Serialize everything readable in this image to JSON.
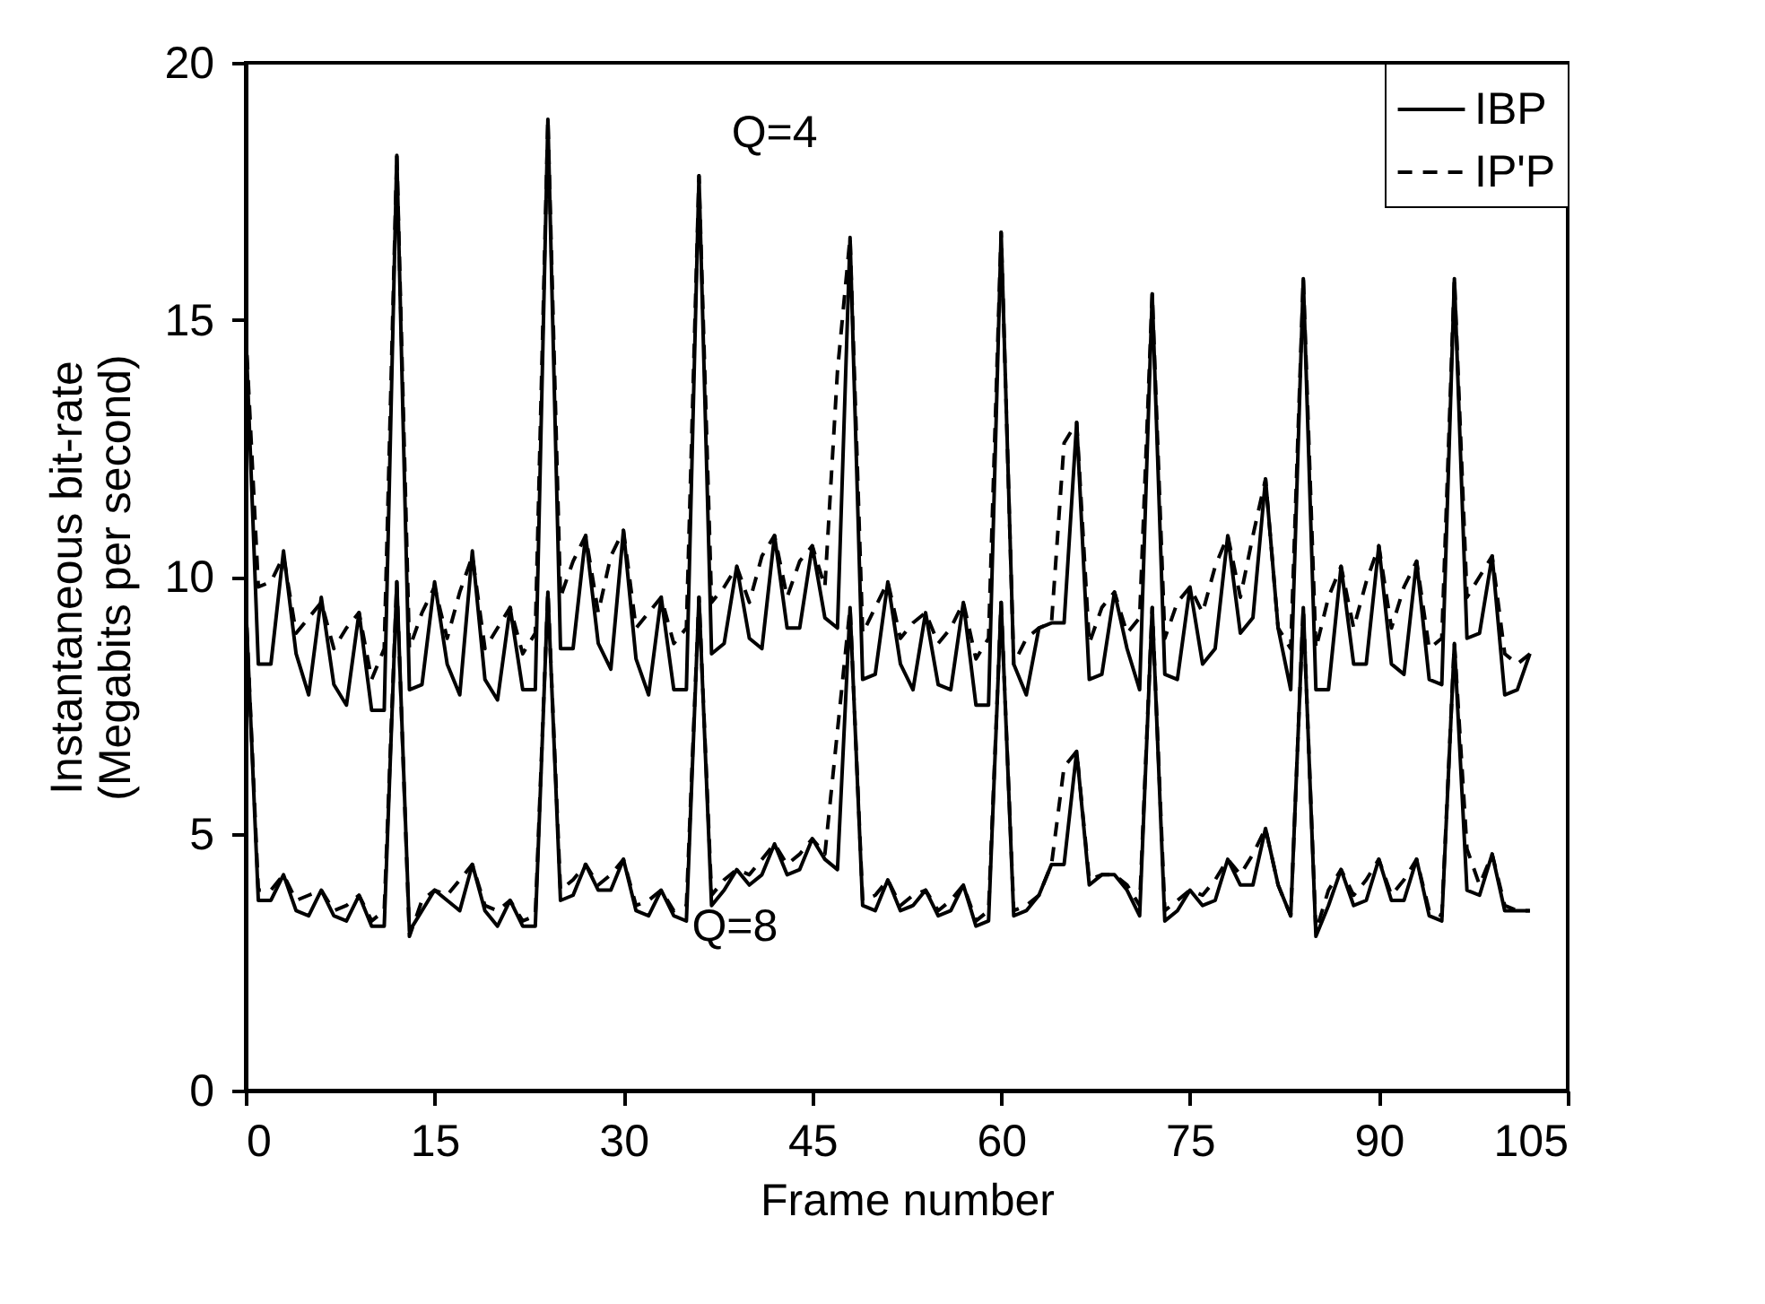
{
  "chart_data": {
    "type": "line",
    "xlabel": "Frame number",
    "ylabel": "Instantaneous bit-rate (Megabits per second)",
    "x": [
      0,
      1,
      2,
      3,
      4,
      5,
      6,
      7,
      8,
      9,
      10,
      11,
      12,
      13,
      14,
      15,
      16,
      17,
      18,
      19,
      20,
      21,
      22,
      23,
      24,
      25,
      26,
      27,
      28,
      29,
      30,
      31,
      32,
      33,
      34,
      35,
      36,
      37,
      38,
      39,
      40,
      41,
      42,
      43,
      44,
      45,
      46,
      47,
      48,
      49,
      50,
      51,
      52,
      53,
      54,
      55,
      56,
      57,
      58,
      59,
      60,
      61,
      62,
      63,
      64,
      65,
      66,
      67,
      68,
      69,
      70,
      71,
      72,
      73,
      74,
      75,
      76,
      77,
      78,
      79,
      80,
      81,
      82,
      83,
      84,
      85,
      86,
      87,
      88,
      89,
      90,
      91,
      92,
      93,
      94,
      95,
      96,
      97,
      98,
      99,
      100,
      101,
      102
    ],
    "series": [
      {
        "name": "IBP",
        "color": "#000000",
        "line_style": "solid",
        "values": [
          14.8,
          8.3,
          8.3,
          10.5,
          8.5,
          7.7,
          9.6,
          7.9,
          7.5,
          9.3,
          7.4,
          7.4,
          18.2,
          7.8,
          7.9,
          9.9,
          8.3,
          7.7,
          10.5,
          8.0,
          7.6,
          9.4,
          7.8,
          7.8,
          18.9,
          8.6,
          8.6,
          10.8,
          8.7,
          8.2,
          10.9,
          8.4,
          7.7,
          9.6,
          7.8,
          7.8,
          17.8,
          8.5,
          8.7,
          10.2,
          8.8,
          8.6,
          10.8,
          9.0,
          9.0,
          10.6,
          9.2,
          9.0,
          16.6,
          8.0,
          8.1,
          9.9,
          8.3,
          7.8,
          9.3,
          7.9,
          7.8,
          9.5,
          7.5,
          7.5,
          16.7,
          8.3,
          7.7,
          9.0,
          9.1,
          9.1,
          13.0,
          8.0,
          8.1,
          9.7,
          8.6,
          7.8,
          15.5,
          8.1,
          8.0,
          9.8,
          8.3,
          8.6,
          10.8,
          8.9,
          9.2,
          11.9,
          9.0,
          7.8,
          15.8,
          7.8,
          7.8,
          10.2,
          8.3,
          8.3,
          10.6,
          8.3,
          8.1,
          10.3,
          8.0,
          7.9,
          15.8,
          8.8,
          8.9,
          10.4,
          7.7,
          7.8,
          8.5
        ]
      },
      {
        "name": "IP'P",
        "color": "#000000",
        "line_style": "dashed",
        "values": [
          14.8,
          9.8,
          9.9,
          10.4,
          8.9,
          9.2,
          9.5,
          8.6,
          9.0,
          9.3,
          8.0,
          8.6,
          18.2,
          8.6,
          9.3,
          9.8,
          8.8,
          9.7,
          10.4,
          8.6,
          9.0,
          9.4,
          8.5,
          8.9,
          18.9,
          9.6,
          10.3,
          10.8,
          9.3,
          10.4,
          10.9,
          9.0,
          9.3,
          9.6,
          8.7,
          9.0,
          17.8,
          9.5,
          9.8,
          10.2,
          9.5,
          10.4,
          10.8,
          9.6,
          10.3,
          10.6,
          9.8,
          14.0,
          16.6,
          8.9,
          9.4,
          9.9,
          8.8,
          9.1,
          9.3,
          8.7,
          9.0,
          9.5,
          8.4,
          8.8,
          16.7,
          8.3,
          8.8,
          9.0,
          9.1,
          12.6,
          13.0,
          8.7,
          9.4,
          9.7,
          8.9,
          9.2,
          15.5,
          8.8,
          9.5,
          9.8,
          9.3,
          10.2,
          10.8,
          9.6,
          10.8,
          11.9,
          9.0,
          8.6,
          15.8,
          8.6,
          9.6,
          10.2,
          9.0,
          9.9,
          10.6,
          9.0,
          9.8,
          10.3,
          8.6,
          8.8,
          15.8,
          9.6,
          10.0,
          10.4,
          8.5,
          8.3,
          8.5
        ]
      },
      {
        "color": "#000000",
        "line_style": "solid",
        "values": [
          9.5,
          3.7,
          3.7,
          4.2,
          3.5,
          3.4,
          3.9,
          3.4,
          3.3,
          3.8,
          3.2,
          3.2,
          9.9,
          3.1,
          3.5,
          3.9,
          3.7,
          3.5,
          4.4,
          3.5,
          3.2,
          3.7,
          3.2,
          3.2,
          9.7,
          3.7,
          3.8,
          4.4,
          3.9,
          3.9,
          4.5,
          3.5,
          3.4,
          3.9,
          3.4,
          3.3,
          9.6,
          3.6,
          3.9,
          4.3,
          4.0,
          4.2,
          4.8,
          4.2,
          4.3,
          4.9,
          4.5,
          4.3,
          9.4,
          3.6,
          3.5,
          4.1,
          3.5,
          3.6,
          3.9,
          3.4,
          3.5,
          4.0,
          3.2,
          3.3,
          9.5,
          3.4,
          3.5,
          3.8,
          4.4,
          4.4,
          6.6,
          4.0,
          4.2,
          4.2,
          3.9,
          3.4,
          9.4,
          3.3,
          3.5,
          3.9,
          3.6,
          3.7,
          4.5,
          4.0,
          4.0,
          5.1,
          4.0,
          3.4,
          9.4,
          3.0,
          3.6,
          4.3,
          3.6,
          3.7,
          4.5,
          3.7,
          3.7,
          4.5,
          3.4,
          3.3,
          8.7,
          3.9,
          3.8,
          4.6,
          3.5,
          3.5,
          3.5
        ]
      },
      {
        "color": "#000000",
        "line_style": "dashed",
        "values": [
          9.5,
          3.9,
          3.9,
          4.2,
          3.7,
          3.8,
          3.9,
          3.5,
          3.6,
          3.8,
          3.3,
          3.5,
          9.9,
          3.0,
          3.7,
          3.9,
          3.8,
          4.1,
          4.4,
          3.6,
          3.5,
          3.7,
          3.3,
          3.4,
          9.7,
          3.9,
          4.1,
          4.4,
          4.0,
          4.2,
          4.5,
          3.6,
          3.7,
          3.9,
          3.5,
          3.6,
          9.6,
          3.8,
          4.1,
          4.3,
          4.2,
          4.5,
          4.8,
          4.4,
          4.6,
          4.9,
          4.6,
          7.0,
          9.4,
          3.7,
          3.8,
          4.1,
          3.6,
          3.8,
          3.9,
          3.5,
          3.7,
          4.0,
          3.3,
          3.5,
          9.5,
          3.5,
          3.6,
          3.8,
          4.4,
          6.3,
          6.6,
          4.1,
          4.2,
          4.2,
          4.0,
          3.6,
          9.4,
          3.5,
          3.7,
          3.9,
          3.8,
          4.1,
          4.5,
          4.2,
          4.6,
          5.1,
          4.0,
          3.4,
          9.4,
          3.1,
          3.9,
          4.3,
          3.8,
          4.1,
          4.5,
          3.8,
          4.1,
          4.5,
          3.5,
          3.4,
          8.7,
          4.7,
          4.0,
          4.6,
          3.6,
          3.5,
          3.5
        ]
      }
    ],
    "annotations": [
      "Q=4",
      "Q=8"
    ],
    "xlim": [
      0,
      105
    ],
    "xticks": [
      0,
      15,
      30,
      45,
      60,
      75,
      90,
      105
    ],
    "ylim": [
      0,
      20
    ],
    "yticks": [
      0,
      5,
      10,
      15,
      20
    ],
    "grid": false,
    "legend": "top right"
  }
}
